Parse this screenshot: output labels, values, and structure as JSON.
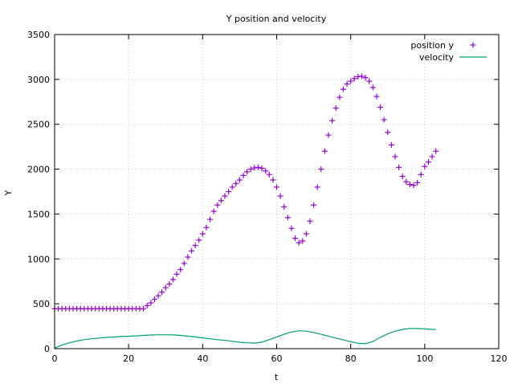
{
  "chart_data": {
    "type": "scatter",
    "title": "Y position and velocity",
    "xlabel": "t",
    "ylabel": "Y",
    "xlim": [
      0,
      120
    ],
    "ylim": [
      0,
      3500
    ],
    "xticks": [
      "0",
      "20",
      "40",
      "60",
      "80",
      "100",
      "120"
    ],
    "yticks": [
      "0",
      "500",
      "1000",
      "1500",
      "2000",
      "2500",
      "3000",
      "3500"
    ],
    "grid": true,
    "legend_position": "top-right",
    "series": [
      {
        "name": "position y",
        "style": "points",
        "marker": "+",
        "color": "#9400d3",
        "x": [
          0,
          1,
          2,
          3,
          4,
          5,
          6,
          7,
          8,
          9,
          10,
          11,
          12,
          13,
          14,
          15,
          16,
          17,
          18,
          19,
          20,
          21,
          22,
          23,
          24,
          25,
          26,
          27,
          28,
          29,
          30,
          31,
          32,
          33,
          34,
          35,
          36,
          37,
          38,
          39,
          40,
          41,
          42,
          43,
          44,
          45,
          46,
          47,
          48,
          49,
          50,
          51,
          52,
          53,
          54,
          55,
          56,
          57,
          58,
          59,
          60,
          61,
          62,
          63,
          64,
          65,
          66,
          67,
          68,
          69,
          70,
          71,
          72,
          73,
          74,
          75,
          76,
          77,
          78,
          79,
          80,
          81,
          82,
          83,
          84,
          85,
          86,
          87,
          88,
          89,
          90,
          91,
          92,
          93,
          94,
          95,
          96,
          97,
          98,
          99,
          100,
          101,
          102,
          103
        ],
        "values": [
          445,
          445,
          445,
          445,
          445,
          445,
          445,
          445,
          445,
          445,
          445,
          445,
          445,
          445,
          445,
          445,
          445,
          445,
          445,
          445,
          445,
          445,
          445,
          445,
          445,
          480,
          510,
          550,
          590,
          630,
          680,
          720,
          770,
          830,
          880,
          950,
          1020,
          1090,
          1150,
          1210,
          1280,
          1350,
          1440,
          1530,
          1600,
          1650,
          1700,
          1750,
          1800,
          1840,
          1880,
          1930,
          1970,
          2000,
          2015,
          2020,
          2010,
          1980,
          1940,
          1880,
          1800,
          1700,
          1580,
          1460,
          1340,
          1230,
          1180,
          1200,
          1280,
          1420,
          1600,
          1800,
          2000,
          2200,
          2380,
          2540,
          2680,
          2800,
          2890,
          2950,
          2980,
          3010,
          3030,
          3035,
          3020,
          2980,
          2910,
          2810,
          2690,
          2550,
          2410,
          2270,
          2140,
          2020,
          1920,
          1860,
          1830,
          1820,
          1850,
          1940,
          2030,
          2080,
          2140,
          2200
        ]
      },
      {
        "name": "velocity",
        "style": "line",
        "color": "#009e73",
        "x": [
          0,
          2,
          4,
          6,
          8,
          10,
          12,
          14,
          16,
          18,
          20,
          22,
          24,
          26,
          28,
          30,
          32,
          34,
          36,
          38,
          40,
          42,
          44,
          46,
          48,
          50,
          52,
          54,
          56,
          58,
          60,
          62,
          64,
          66,
          68,
          70,
          72,
          74,
          76,
          78,
          80,
          82,
          84,
          86,
          88,
          90,
          92,
          94,
          96,
          98,
          100,
          102,
          103
        ],
        "values": [
          5,
          40,
          65,
          85,
          100,
          110,
          118,
          125,
          130,
          135,
          138,
          142,
          148,
          152,
          155,
          155,
          153,
          148,
          140,
          130,
          120,
          110,
          100,
          92,
          82,
          72,
          65,
          62,
          72,
          100,
          130,
          160,
          185,
          200,
          195,
          180,
          160,
          138,
          118,
          98,
          78,
          60,
          55,
          80,
          125,
          165,
          195,
          215,
          225,
          225,
          220,
          215,
          213
        ]
      }
    ]
  }
}
